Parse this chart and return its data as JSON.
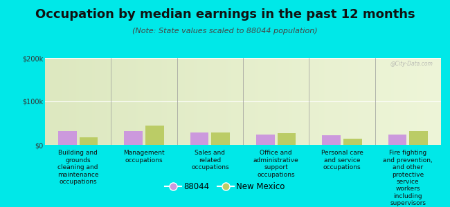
{
  "title": "Occupation by median earnings in the past 12 months",
  "subtitle": "(Note: State values scaled to 88044 population)",
  "categories": [
    "Building and\ngrounds\ncleaning and\nmaintenance\noccupations",
    "Management\noccupations",
    "Sales and\nrelated\noccupations",
    "Office and\nadministrative\nsupport\noccupations",
    "Personal care\nand service\noccupations",
    "Fire fighting\nand prevention,\nand other\nprotective\nservice\nworkers\nincluding\nsupervisors"
  ],
  "values_88044": [
    32000,
    32000,
    28000,
    24000,
    22000,
    24000
  ],
  "values_nm": [
    18000,
    45000,
    28000,
    27000,
    15000,
    32000
  ],
  "color_88044": "#cc99dd",
  "color_nm": "#bbcc66",
  "bg_plot_top": "#dde8c0",
  "bg_plot_bottom": "#eef5d8",
  "bg_outer": "#00e8e8",
  "ylim": [
    0,
    200000
  ],
  "ytick_labels": [
    "$0",
    "$100k",
    "$200k"
  ],
  "ytick_vals": [
    0,
    100000,
    200000
  ],
  "watermark": "@City-Data.com",
  "legend_88044": "88044",
  "legend_nm": "New Mexico",
  "title_fontsize": 13,
  "subtitle_fontsize": 8,
  "tick_fontsize": 7,
  "cat_fontsize": 6.5,
  "bar_width": 0.28,
  "bar_gap": 0.04
}
